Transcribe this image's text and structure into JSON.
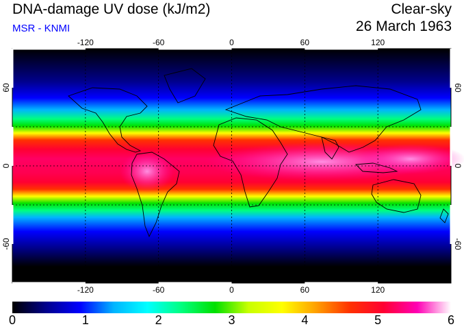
{
  "header": {
    "title": "DNA-damage UV dose (kJ/m2)",
    "subtitle": "MSR - KNMI",
    "sky_condition": "Clear-sky",
    "date": "26 March 1963"
  },
  "map": {
    "projection": "equirectangular",
    "lon_range": [
      -180,
      180
    ],
    "lat_range": [
      -90,
      90
    ],
    "lon_ticks": [
      "-120",
      "-60",
      "0",
      "60",
      "120"
    ],
    "lat_ticks": [
      "60",
      "0",
      "-60"
    ],
    "grid": "dashed",
    "regions": [
      "continents outline"
    ]
  },
  "colorbar": {
    "labels": [
      "0",
      "1",
      "2",
      "3",
      "4",
      "5",
      "6"
    ],
    "range": [
      0,
      6
    ],
    "colors": [
      "#000000",
      "#00008c",
      "#0000ff",
      "#00b4ff",
      "#00ffff",
      "#00ff80",
      "#00e000",
      "#c8ff00",
      "#ffff00",
      "#ffa000",
      "#ff3200",
      "#ff0032",
      "#ff00b4",
      "#ffffff"
    ]
  },
  "colors": {
    "subtitle": "#0000ff",
    "background": "#ffffff"
  }
}
